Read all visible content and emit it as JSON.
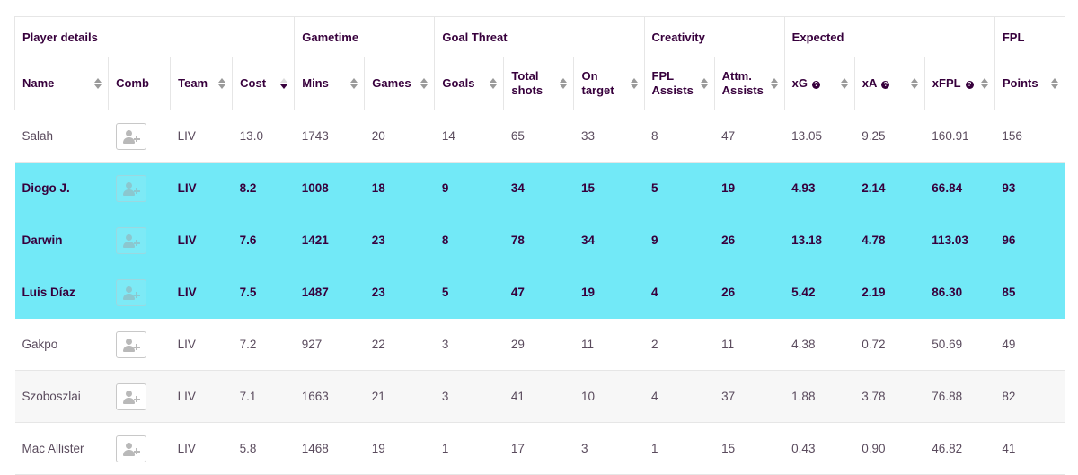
{
  "groups": [
    {
      "label": "Player details",
      "span": 4
    },
    {
      "label": "Gametime",
      "span": 2
    },
    {
      "label": "Goal Threat",
      "span": 3
    },
    {
      "label": "Creativity",
      "span": 2
    },
    {
      "label": "Expected",
      "span": 3
    },
    {
      "label": "FPL",
      "span": 1
    }
  ],
  "columns": [
    {
      "key": "name",
      "label": "Name",
      "sort": "none",
      "help": false
    },
    {
      "key": "comb",
      "label": "Comb",
      "sort": null,
      "help": false
    },
    {
      "key": "team",
      "label": "Team",
      "sort": "none",
      "help": false
    },
    {
      "key": "cost",
      "label": "Cost",
      "sort": "desc",
      "help": false
    },
    {
      "key": "mins",
      "label": "Mins",
      "sort": "none",
      "help": false
    },
    {
      "key": "games",
      "label": "Games",
      "sort": "none",
      "help": false
    },
    {
      "key": "goals",
      "label": "Goals",
      "sort": "none",
      "help": false
    },
    {
      "key": "total_shots",
      "label": "Total shots",
      "sort": "none",
      "help": false
    },
    {
      "key": "on_target",
      "label": "On target",
      "sort": "none",
      "help": false
    },
    {
      "key": "fpl_assists",
      "label": "FPL Assists",
      "sort": "none",
      "help": false
    },
    {
      "key": "attm_assists",
      "label": "Attm. Assists",
      "sort": "none",
      "help": false
    },
    {
      "key": "xg",
      "label": "xG",
      "sort": "none",
      "help": true
    },
    {
      "key": "xa",
      "label": "xA",
      "sort": "none",
      "help": true
    },
    {
      "key": "xfpl",
      "label": "xFPL",
      "sort": "none",
      "help": true
    },
    {
      "key": "points",
      "label": "Points",
      "sort": "none",
      "help": false
    }
  ],
  "rows": [
    {
      "name": "Salah",
      "team": "LIV",
      "cost": "13.0",
      "mins": "1743",
      "games": "20",
      "goals": "14",
      "total_shots": "65",
      "on_target": "33",
      "fpl_assists": "8",
      "attm_assists": "47",
      "xg": "13.05",
      "xa": "9.25",
      "xfpl": "160.91",
      "points": "156",
      "highlighted": false
    },
    {
      "name": "Diogo J.",
      "team": "LIV",
      "cost": "8.2",
      "mins": "1008",
      "games": "18",
      "goals": "9",
      "total_shots": "34",
      "on_target": "15",
      "fpl_assists": "5",
      "attm_assists": "19",
      "xg": "4.93",
      "xa": "2.14",
      "xfpl": "66.84",
      "points": "93",
      "highlighted": true
    },
    {
      "name": "Darwin",
      "team": "LIV",
      "cost": "7.6",
      "mins": "1421",
      "games": "23",
      "goals": "8",
      "total_shots": "78",
      "on_target": "34",
      "fpl_assists": "9",
      "attm_assists": "26",
      "xg": "13.18",
      "xa": "4.78",
      "xfpl": "113.03",
      "points": "96",
      "highlighted": true
    },
    {
      "name": "Luis Díaz",
      "team": "LIV",
      "cost": "7.5",
      "mins": "1487",
      "games": "23",
      "goals": "5",
      "total_shots": "47",
      "on_target": "19",
      "fpl_assists": "4",
      "attm_assists": "26",
      "xg": "5.42",
      "xa": "2.19",
      "xfpl": "86.30",
      "points": "85",
      "highlighted": true
    },
    {
      "name": "Gakpo",
      "team": "LIV",
      "cost": "7.2",
      "mins": "927",
      "games": "22",
      "goals": "3",
      "total_shots": "29",
      "on_target": "11",
      "fpl_assists": "2",
      "attm_assists": "11",
      "xg": "4.38",
      "xa": "0.72",
      "xfpl": "50.69",
      "points": "49",
      "highlighted": false
    },
    {
      "name": "Szoboszlai",
      "team": "LIV",
      "cost": "7.1",
      "mins": "1663",
      "games": "21",
      "goals": "3",
      "total_shots": "41",
      "on_target": "10",
      "fpl_assists": "4",
      "attm_assists": "37",
      "xg": "1.88",
      "xa": "3.78",
      "xfpl": "76.88",
      "points": "82",
      "highlighted": false
    },
    {
      "name": "Mac Allister",
      "team": "LIV",
      "cost": "5.8",
      "mins": "1468",
      "games": "19",
      "goals": "1",
      "total_shots": "17",
      "on_target": "3",
      "fpl_assists": "1",
      "attm_assists": "15",
      "xg": "0.43",
      "xa": "0.90",
      "xfpl": "46.82",
      "points": "41",
      "highlighted": false
    }
  ],
  "icons": {
    "comb_button": "add-user-icon",
    "help": "help-circle-icon",
    "sort": "sort-arrows-icon"
  },
  "colors": {
    "text": "#37003c",
    "highlight": "#72e9f7",
    "alt_row": "#f7f7f7",
    "border": "#e6e6e6"
  }
}
